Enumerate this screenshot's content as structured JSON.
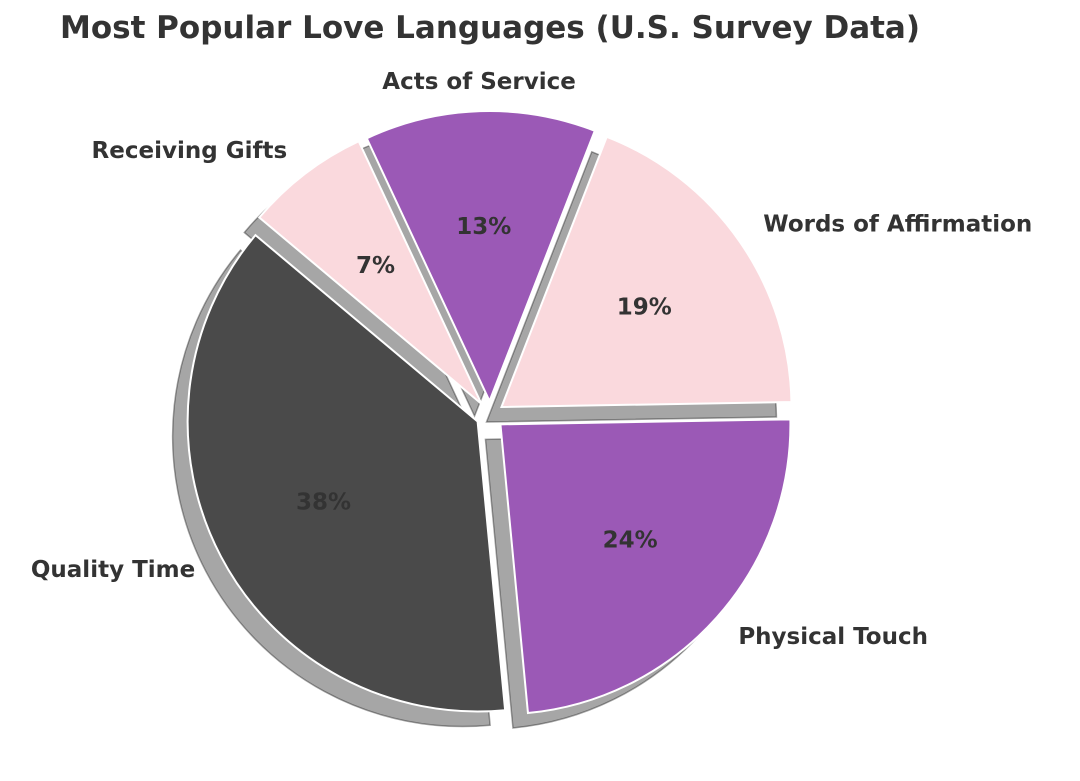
{
  "chart_data": {
    "type": "pie",
    "title": "Most Popular Love Languages (U.S. Survey Data)",
    "categories": [
      "Quality Time",
      "Physical Touch",
      "Words of Affirmation",
      "Acts of Service",
      "Receiving Gifts"
    ],
    "values": [
      38,
      24,
      19,
      13,
      7
    ],
    "value_labels": [
      "38%",
      "24%",
      "19%",
      "13%",
      "7%"
    ],
    "colors": [
      "#4a4a4a",
      "#9b59b6",
      "#fad9dd",
      "#9b59b6",
      "#fad9dd"
    ],
    "start_angle_deg": 140,
    "direction": "counterclockwise",
    "exploded": true,
    "shadow": true,
    "legend": "none"
  }
}
